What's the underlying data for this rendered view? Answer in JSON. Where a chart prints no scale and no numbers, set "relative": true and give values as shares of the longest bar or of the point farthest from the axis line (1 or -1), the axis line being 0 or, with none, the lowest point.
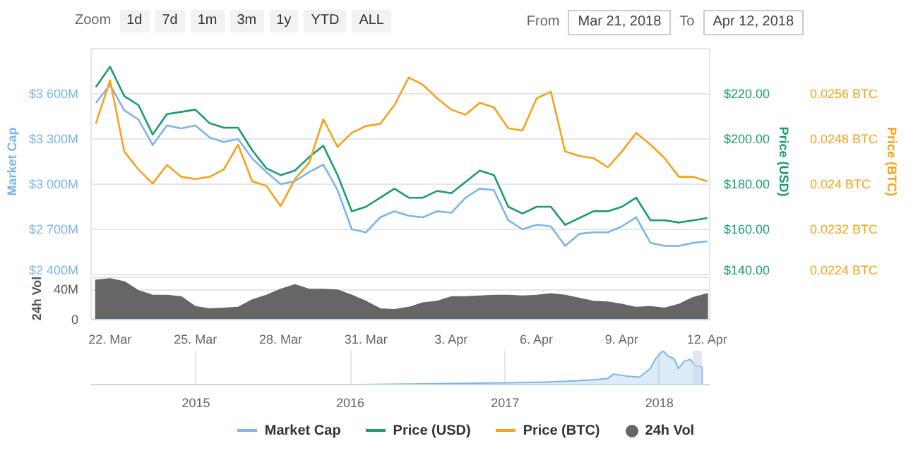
{
  "chart_data": [
    {
      "type": "line",
      "ylabel": "Market Cap",
      "y2label": "Price (USD)",
      "y3label": "Price (BTC)",
      "annotations": [
        "Zoom",
        "1d",
        "7d",
        "1m",
        "3m",
        "1y",
        "YTD",
        "ALL",
        "From",
        "Mar 21, 2018",
        "To",
        "Apr 12, 2018"
      ],
      "xlim": [
        "2018-03-21T08:00",
        "2018-04-12T02:00"
      ],
      "ylim": [
        2400,
        3900
      ],
      "yticks": [
        {
          "value": 2400,
          "label": "$2 400M"
        },
        {
          "value": 2700,
          "label": "$2 700M"
        },
        {
          "value": 3000,
          "label": "$3 000M"
        },
        {
          "value": 3300,
          "label": "$3 300M"
        },
        {
          "value": 3600,
          "label": "$3 600M"
        }
      ],
      "y2lim": [
        140,
        240
      ],
      "y2ticks": [
        {
          "value": 140,
          "label": "$140.00"
        },
        {
          "value": 160,
          "label": "$160.00"
        },
        {
          "value": 180,
          "label": "$180.00"
        },
        {
          "value": 200,
          "label": "$200.00"
        },
        {
          "value": 220,
          "label": "$220.00"
        }
      ],
      "y3lim": [
        0.0224,
        0.0264
      ],
      "y3ticks": [
        {
          "value": 0.0224,
          "label": "0.0224 BTC"
        },
        {
          "value": 0.0232,
          "label": "0.0232 BTC"
        },
        {
          "value": 0.024,
          "label": "0.024 BTC"
        },
        {
          "value": 0.0248,
          "label": "0.0248 BTC"
        },
        {
          "value": 0.0256,
          "label": "0.0256 BTC"
        }
      ],
      "x": [
        "2018-03-21T12:00",
        "2018-03-22",
        "2018-03-22T12:00",
        "2018-03-23",
        "2018-03-23T12:00",
        "2018-03-24",
        "2018-03-24T12:00",
        "2018-03-25",
        "2018-03-25T12:00",
        "2018-03-26",
        "2018-03-26T12:00",
        "2018-03-27",
        "2018-03-27T12:00",
        "2018-03-28",
        "2018-03-28T12:00",
        "2018-03-29",
        "2018-03-29T12:00",
        "2018-03-30",
        "2018-03-30T12:00",
        "2018-03-31",
        "2018-03-31T12:00",
        "2018-04-01",
        "2018-04-01T12:00",
        "2018-04-02",
        "2018-04-02T12:00",
        "2018-04-03",
        "2018-04-03T12:00",
        "2018-04-04",
        "2018-04-04T12:00",
        "2018-04-05",
        "2018-04-05T12:00",
        "2018-04-06",
        "2018-04-06T12:00",
        "2018-04-07",
        "2018-04-07T12:00",
        "2018-04-08",
        "2018-04-08T12:00",
        "2018-04-09",
        "2018-04-09T12:00",
        "2018-04-10",
        "2018-04-10T12:00",
        "2018-04-11",
        "2018-04-11T12:00",
        "2018-04-12"
      ],
      "series": [
        {
          "name": "Market Cap",
          "color": "#7cb5ec",
          "values": [
            3540,
            3660,
            3490,
            3430,
            3260,
            3390,
            3370,
            3390,
            3310,
            3280,
            3300,
            3170,
            3080,
            3000,
            3020,
            3080,
            3130,
            2960,
            2700,
            2680,
            2780,
            2820,
            2790,
            2780,
            2820,
            2810,
            2910,
            2970,
            2960,
            2760,
            2700,
            2730,
            2720,
            2590,
            2670,
            2680,
            2680,
            2720,
            2780,
            2610,
            2590,
            2590,
            2610,
            2620
          ]
        },
        {
          "name": "Price (USD)",
          "color": "#1a9b72",
          "axis": "y2",
          "values": [
            223,
            232,
            219,
            215,
            202,
            211,
            212,
            213,
            207,
            205,
            205,
            195,
            187,
            184,
            186,
            192,
            197,
            184,
            168,
            170,
            174,
            178,
            174,
            174,
            177,
            176,
            181,
            186,
            184,
            170,
            167,
            170,
            170,
            162,
            165,
            168,
            168,
            170,
            174,
            164,
            164,
            163,
            164,
            165
          ]
        },
        {
          "name": "Price (BTC)",
          "color": "#f7a21b",
          "axis": "y3",
          "values": [
            0.02507,
            0.02584,
            0.02458,
            0.02426,
            0.02401,
            0.02434,
            0.02413,
            0.02409,
            0.02413,
            0.02426,
            0.0247,
            0.02405,
            0.02397,
            0.02361,
            0.02409,
            0.02438,
            0.02515,
            0.02466,
            0.02491,
            0.02503,
            0.02507,
            0.0254,
            0.02589,
            0.02576,
            0.02552,
            0.02532,
            0.02523,
            0.02544,
            0.02536,
            0.02499,
            0.02495,
            0.02552,
            0.02564,
            0.02458,
            0.0245,
            0.02446,
            0.0243,
            0.02458,
            0.02491,
            0.0247,
            0.02446,
            0.02413,
            0.02413,
            0.02405
          ]
        }
      ],
      "grid": "y",
      "tick_labels": "y",
      "legend": "bottom"
    },
    {
      "type": "area",
      "ylabel": "24h Vol",
      "xlim": [
        "2018-03-21T08:00",
        "2018-04-12T02:00"
      ],
      "xticks": [
        {
          "value": "2018-03-22",
          "label": "22. Mar"
        },
        {
          "value": "2018-03-25",
          "label": "25. Mar"
        },
        {
          "value": "2018-03-28",
          "label": "28. Mar"
        },
        {
          "value": "2018-03-31",
          "label": "31. Mar"
        },
        {
          "value": "2018-04-03",
          "label": "3. Apr"
        },
        {
          "value": "2018-04-06",
          "label": "6. Apr"
        },
        {
          "value": "2018-04-09",
          "label": "9. Apr"
        },
        {
          "value": "2018-04-12",
          "label": "12. Apr"
        }
      ],
      "ylim": [
        0,
        56
      ],
      "yticks": [
        0,
        {
          "value": 40,
          "label": "40M"
        }
      ],
      "x": [
        "2018-03-21T12:00",
        "2018-03-22",
        "2018-03-22T12:00",
        "2018-03-23",
        "2018-03-23T12:00",
        "2018-03-24",
        "2018-03-24T12:00",
        "2018-03-25",
        "2018-03-25T12:00",
        "2018-03-26",
        "2018-03-26T12:00",
        "2018-03-27",
        "2018-03-27T12:00",
        "2018-03-28",
        "2018-03-28T12:00",
        "2018-03-29",
        "2018-03-29T12:00",
        "2018-03-30",
        "2018-03-30T12:00",
        "2018-03-31",
        "2018-03-31T12:00",
        "2018-04-01",
        "2018-04-01T12:00",
        "2018-04-02",
        "2018-04-02T12:00",
        "2018-04-03",
        "2018-04-03T12:00",
        "2018-04-04",
        "2018-04-04T12:00",
        "2018-04-05",
        "2018-04-05T12:00",
        "2018-04-06",
        "2018-04-06T12:00",
        "2018-04-07",
        "2018-04-07T12:00",
        "2018-04-08",
        "2018-04-08T12:00",
        "2018-04-09",
        "2018-04-09T12:00",
        "2018-04-10",
        "2018-04-10T12:00",
        "2018-04-11",
        "2018-04-11T12:00",
        "2018-04-12"
      ],
      "series": [
        {
          "name": "24h Vol",
          "color": "#666666",
          "values": [
            52,
            54,
            50,
            38,
            32,
            32,
            30,
            17,
            14,
            15,
            16,
            26,
            32,
            40,
            46,
            40,
            40,
            39,
            32,
            24,
            14,
            13,
            16,
            22,
            24,
            30,
            30,
            31,
            32,
            32,
            31,
            32,
            34,
            32,
            28,
            24,
            23,
            20,
            16,
            17,
            15,
            20,
            29,
            34
          ]
        }
      ],
      "grid": "y"
    },
    {
      "type": "area",
      "relative": true,
      "xlim": [
        "2014-04-28",
        "2018-04-30"
      ],
      "xticks": [
        {
          "value": "2015-01-01",
          "label": "2015"
        },
        {
          "value": "2016-01-01",
          "label": "2016"
        },
        {
          "value": "2017-01-01",
          "label": "2017"
        },
        {
          "value": "2018-01-01",
          "label": "2018"
        }
      ],
      "x": [
        "2014-05-25",
        "2015-01-01",
        "2016-01-01",
        "2016-07-01",
        "2017-01-01",
        "2017-04-01",
        "2017-06-15",
        "2017-08-01",
        "2017-09-01",
        "2017-09-15",
        "2017-10-15",
        "2017-11-15",
        "2017-12-10",
        "2017-12-25",
        "2018-01-10",
        "2018-01-20",
        "2018-02-05",
        "2018-02-15",
        "2018-03-01",
        "2018-03-15",
        "2018-03-25",
        "2018-04-12"
      ],
      "series": [
        {
          "color": "#7cb5ec",
          "values": [
            0,
            0,
            0,
            0.02,
            0.05,
            0.07,
            0.11,
            0.14,
            0.18,
            0.31,
            0.25,
            0.22,
            0.47,
            0.8,
            1,
            0.85,
            0.76,
            0.47,
            0.69,
            0.74,
            0.58,
            0.51
          ]
        }
      ],
      "bands": [
        {
          "axis": "x",
          "from": "2018-03-21",
          "to": "2018-04-12",
          "color": "#ccd6eb"
        }
      ],
      "grid": "x",
      "tick_labels": "x"
    }
  ]
}
